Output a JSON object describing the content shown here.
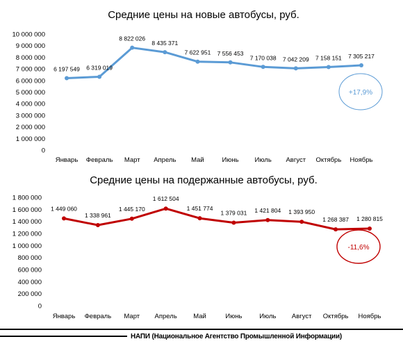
{
  "chart_data": [
    {
      "type": "line",
      "title": "Средние цены на новые автобусы, руб.",
      "categories": [
        "Январь",
        "Февраль",
        "Март",
        "Апрель",
        "Май",
        "Июнь",
        "Июль",
        "Август",
        "Октябрь",
        "Ноябрь"
      ],
      "values": [
        6197549,
        6319019,
        8822026,
        8435371,
        7622951,
        7556453,
        7170038,
        7042209,
        7158151,
        7305217
      ],
      "data_labels": [
        "6 197 549",
        "6 319 019",
        "8 822 026",
        "8 435 371",
        "7 622 951",
        "7 556 453",
        "7 170 038",
        "7 042 209",
        "7 158 151",
        "7 305 217"
      ],
      "yticks": [
        0,
        1000000,
        2000000,
        3000000,
        4000000,
        5000000,
        6000000,
        7000000,
        8000000,
        9000000,
        10000000
      ],
      "ytick_labels": [
        "0",
        "1 000 000",
        "2 000 000",
        "3 000 000",
        "4 000 000",
        "5 000 000",
        "6 000 000",
        "7 000 000",
        "8 000 000",
        "9 000 000",
        "10 000 000"
      ],
      "ylim": [
        0,
        10000000
      ],
      "grid": false,
      "color": "#5b9bd5",
      "annotation": "+17,9%"
    },
    {
      "type": "line",
      "title": "Средние цены на подержанные автобусы, руб.",
      "categories": [
        "Январь",
        "Февраль",
        "Март",
        "Апрель",
        "Май",
        "Июнь",
        "Июль",
        "Август",
        "Октябрь",
        "Ноябрь"
      ],
      "values": [
        1449060,
        1338961,
        1445170,
        1612504,
        1451774,
        1379031,
        1421804,
        1393950,
        1268387,
        1280815
      ],
      "data_labels": [
        "1 449 060",
        "1 338 961",
        "1 445 170",
        "1 612 504",
        "1 451 774",
        "1 379 031",
        "1 421 804",
        "1 393 950",
        "1 268 387",
        "1 280 815"
      ],
      "yticks": [
        0,
        200000,
        400000,
        600000,
        800000,
        1000000,
        1200000,
        1400000,
        1600000,
        1800000
      ],
      "ytick_labels": [
        "0",
        "200 000",
        "400 000",
        "600 000",
        "800 000",
        "1 000 000",
        "1 200 000",
        "1 400 000",
        "1 600 000",
        "1 800 000"
      ],
      "ylim": [
        0,
        1800000
      ],
      "grid": false,
      "color": "#c00000",
      "annotation": "-11,6%"
    }
  ],
  "footer": {
    "text": "НАПИ (Национальное Агентство Промышленной Информации)"
  }
}
